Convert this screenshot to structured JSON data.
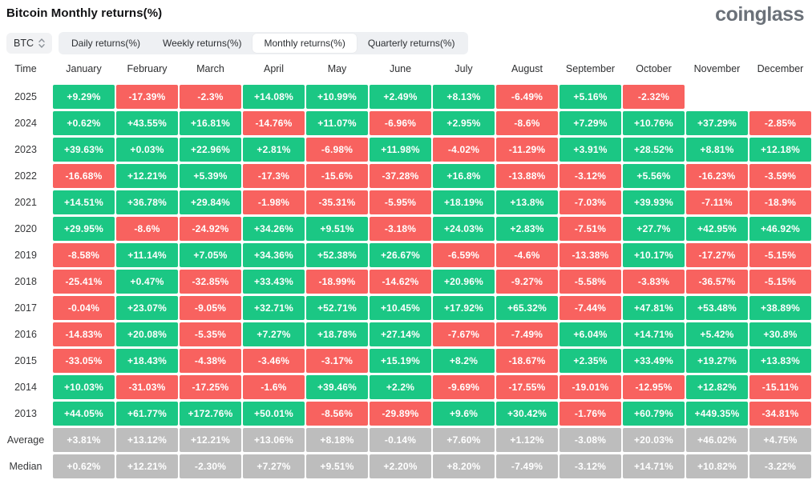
{
  "header": {
    "title": "Bitcoin Monthly returns(%)",
    "logo": "coinglass"
  },
  "controls": {
    "symbol": "BTC",
    "symbol_selector_icon": "sort-arrows-icon",
    "tabs": [
      "Daily returns(%)",
      "Weekly returns(%)",
      "Monthly returns(%)",
      "Quarterly returns(%)"
    ],
    "active_index": 2
  },
  "colors": {
    "positive": "#1BC784",
    "negative": "#F8625F",
    "summary": "#BDBDBD",
    "cell_text": "#FFFFFF"
  },
  "chart_data": {
    "type": "heatmap",
    "title": "Bitcoin Monthly returns(%)",
    "categories": [
      "January",
      "February",
      "March",
      "April",
      "May",
      "June",
      "July",
      "August",
      "September",
      "October",
      "November",
      "December"
    ],
    "series": [
      {
        "name": "2025",
        "values": [
          "+9.29%",
          "-17.39%",
          "-2.3%",
          "+14.08%",
          "+10.99%",
          "+2.49%",
          "+8.13%",
          "-6.49%",
          "+5.16%",
          "-2.32%",
          "",
          ""
        ]
      },
      {
        "name": "2024",
        "values": [
          "+0.62%",
          "+43.55%",
          "+16.81%",
          "-14.76%",
          "+11.07%",
          "-6.96%",
          "+2.95%",
          "-8.6%",
          "+7.29%",
          "+10.76%",
          "+37.29%",
          "-2.85%"
        ]
      },
      {
        "name": "2023",
        "values": [
          "+39.63%",
          "+0.03%",
          "+22.96%",
          "+2.81%",
          "-6.98%",
          "+11.98%",
          "-4.02%",
          "-11.29%",
          "+3.91%",
          "+28.52%",
          "+8.81%",
          "+12.18%"
        ]
      },
      {
        "name": "2022",
        "values": [
          "-16.68%",
          "+12.21%",
          "+5.39%",
          "-17.3%",
          "-15.6%",
          "-37.28%",
          "+16.8%",
          "-13.88%",
          "-3.12%",
          "+5.56%",
          "-16.23%",
          "-3.59%"
        ]
      },
      {
        "name": "2021",
        "values": [
          "+14.51%",
          "+36.78%",
          "+29.84%",
          "-1.98%",
          "-35.31%",
          "-5.95%",
          "+18.19%",
          "+13.8%",
          "-7.03%",
          "+39.93%",
          "-7.11%",
          "-18.9%"
        ]
      },
      {
        "name": "2020",
        "values": [
          "+29.95%",
          "-8.6%",
          "-24.92%",
          "+34.26%",
          "+9.51%",
          "-3.18%",
          "+24.03%",
          "+2.83%",
          "-7.51%",
          "+27.7%",
          "+42.95%",
          "+46.92%"
        ]
      },
      {
        "name": "2019",
        "values": [
          "-8.58%",
          "+11.14%",
          "+7.05%",
          "+34.36%",
          "+52.38%",
          "+26.67%",
          "-6.59%",
          "-4.6%",
          "-13.38%",
          "+10.17%",
          "-17.27%",
          "-5.15%"
        ]
      },
      {
        "name": "2018",
        "values": [
          "-25.41%",
          "+0.47%",
          "-32.85%",
          "+33.43%",
          "-18.99%",
          "-14.62%",
          "+20.96%",
          "-9.27%",
          "-5.58%",
          "-3.83%",
          "-36.57%",
          "-5.15%"
        ]
      },
      {
        "name": "2017",
        "values": [
          "-0.04%",
          "+23.07%",
          "-9.05%",
          "+32.71%",
          "+52.71%",
          "+10.45%",
          "+17.92%",
          "+65.32%",
          "-7.44%",
          "+47.81%",
          "+53.48%",
          "+38.89%"
        ]
      },
      {
        "name": "2016",
        "values": [
          "-14.83%",
          "+20.08%",
          "-5.35%",
          "+7.27%",
          "+18.78%",
          "+27.14%",
          "-7.67%",
          "-7.49%",
          "+6.04%",
          "+14.71%",
          "+5.42%",
          "+30.8%"
        ]
      },
      {
        "name": "2015",
        "values": [
          "-33.05%",
          "+18.43%",
          "-4.38%",
          "-3.46%",
          "-3.17%",
          "+15.19%",
          "+8.2%",
          "-18.67%",
          "+2.35%",
          "+33.49%",
          "+19.27%",
          "+13.83%"
        ]
      },
      {
        "name": "2014",
        "values": [
          "+10.03%",
          "-31.03%",
          "-17.25%",
          "-1.6%",
          "+39.46%",
          "+2.2%",
          "-9.69%",
          "-17.55%",
          "-19.01%",
          "-12.95%",
          "+12.82%",
          "-15.11%"
        ]
      },
      {
        "name": "2013",
        "values": [
          "+44.05%",
          "+61.77%",
          "+172.76%",
          "+50.01%",
          "-8.56%",
          "-29.89%",
          "+9.6%",
          "+30.42%",
          "-1.76%",
          "+60.79%",
          "+449.35%",
          "-34.81%"
        ]
      },
      {
        "name": "Average",
        "values": [
          "+3.81%",
          "+13.12%",
          "+12.21%",
          "+13.06%",
          "+8.18%",
          "-0.14%",
          "+7.60%",
          "+1.12%",
          "-3.08%",
          "+20.03%",
          "+46.02%",
          "+4.75%"
        ]
      },
      {
        "name": "Median",
        "values": [
          "+0.62%",
          "+12.21%",
          "-2.30%",
          "+7.27%",
          "+9.51%",
          "+2.20%",
          "+8.20%",
          "-7.49%",
          "-3.12%",
          "+14.71%",
          "+10.82%",
          "-3.22%"
        ]
      }
    ]
  },
  "table": {
    "columns": [
      "Time",
      "January",
      "February",
      "March",
      "April",
      "May",
      "June",
      "July",
      "August",
      "September",
      "October",
      "November",
      "December"
    ],
    "rows": [
      {
        "label": "2025",
        "type": "year",
        "values": [
          "+9.29%",
          "-17.39%",
          "-2.3%",
          "+14.08%",
          "+10.99%",
          "+2.49%",
          "+8.13%",
          "-6.49%",
          "+5.16%",
          "-2.32%",
          "",
          ""
        ]
      },
      {
        "label": "2024",
        "type": "year",
        "values": [
          "+0.62%",
          "+43.55%",
          "+16.81%",
          "-14.76%",
          "+11.07%",
          "-6.96%",
          "+2.95%",
          "-8.6%",
          "+7.29%",
          "+10.76%",
          "+37.29%",
          "-2.85%"
        ]
      },
      {
        "label": "2023",
        "type": "year",
        "values": [
          "+39.63%",
          "+0.03%",
          "+22.96%",
          "+2.81%",
          "-6.98%",
          "+11.98%",
          "-4.02%",
          "-11.29%",
          "+3.91%",
          "+28.52%",
          "+8.81%",
          "+12.18%"
        ]
      },
      {
        "label": "2022",
        "type": "year",
        "values": [
          "-16.68%",
          "+12.21%",
          "+5.39%",
          "-17.3%",
          "-15.6%",
          "-37.28%",
          "+16.8%",
          "-13.88%",
          "-3.12%",
          "+5.56%",
          "-16.23%",
          "-3.59%"
        ]
      },
      {
        "label": "2021",
        "type": "year",
        "values": [
          "+14.51%",
          "+36.78%",
          "+29.84%",
          "-1.98%",
          "-35.31%",
          "-5.95%",
          "+18.19%",
          "+13.8%",
          "-7.03%",
          "+39.93%",
          "-7.11%",
          "-18.9%"
        ]
      },
      {
        "label": "2020",
        "type": "year",
        "values": [
          "+29.95%",
          "-8.6%",
          "-24.92%",
          "+34.26%",
          "+9.51%",
          "-3.18%",
          "+24.03%",
          "+2.83%",
          "-7.51%",
          "+27.7%",
          "+42.95%",
          "+46.92%"
        ]
      },
      {
        "label": "2019",
        "type": "year",
        "values": [
          "-8.58%",
          "+11.14%",
          "+7.05%",
          "+34.36%",
          "+52.38%",
          "+26.67%",
          "-6.59%",
          "-4.6%",
          "-13.38%",
          "+10.17%",
          "-17.27%",
          "-5.15%"
        ]
      },
      {
        "label": "2018",
        "type": "year",
        "values": [
          "-25.41%",
          "+0.47%",
          "-32.85%",
          "+33.43%",
          "-18.99%",
          "-14.62%",
          "+20.96%",
          "-9.27%",
          "-5.58%",
          "-3.83%",
          "-36.57%",
          "-5.15%"
        ]
      },
      {
        "label": "2017",
        "type": "year",
        "values": [
          "-0.04%",
          "+23.07%",
          "-9.05%",
          "+32.71%",
          "+52.71%",
          "+10.45%",
          "+17.92%",
          "+65.32%",
          "-7.44%",
          "+47.81%",
          "+53.48%",
          "+38.89%"
        ]
      },
      {
        "label": "2016",
        "type": "year",
        "values": [
          "-14.83%",
          "+20.08%",
          "-5.35%",
          "+7.27%",
          "+18.78%",
          "+27.14%",
          "-7.67%",
          "-7.49%",
          "+6.04%",
          "+14.71%",
          "+5.42%",
          "+30.8%"
        ]
      },
      {
        "label": "2015",
        "type": "year",
        "values": [
          "-33.05%",
          "+18.43%",
          "-4.38%",
          "-3.46%",
          "-3.17%",
          "+15.19%",
          "+8.2%",
          "-18.67%",
          "+2.35%",
          "+33.49%",
          "+19.27%",
          "+13.83%"
        ]
      },
      {
        "label": "2014",
        "type": "year",
        "values": [
          "+10.03%",
          "-31.03%",
          "-17.25%",
          "-1.6%",
          "+39.46%",
          "+2.2%",
          "-9.69%",
          "-17.55%",
          "-19.01%",
          "-12.95%",
          "+12.82%",
          "-15.11%"
        ]
      },
      {
        "label": "2013",
        "type": "year",
        "values": [
          "+44.05%",
          "+61.77%",
          "+172.76%",
          "+50.01%",
          "-8.56%",
          "-29.89%",
          "+9.6%",
          "+30.42%",
          "-1.76%",
          "+60.79%",
          "+449.35%",
          "-34.81%"
        ]
      },
      {
        "label": "Average",
        "type": "summary",
        "values": [
          "+3.81%",
          "+13.12%",
          "+12.21%",
          "+13.06%",
          "+8.18%",
          "-0.14%",
          "+7.60%",
          "+1.12%",
          "-3.08%",
          "+20.03%",
          "+46.02%",
          "+4.75%"
        ]
      },
      {
        "label": "Median",
        "type": "summary",
        "values": [
          "+0.62%",
          "+12.21%",
          "-2.30%",
          "+7.27%",
          "+9.51%",
          "+2.20%",
          "+8.20%",
          "-7.49%",
          "-3.12%",
          "+14.71%",
          "+10.82%",
          "-3.22%"
        ]
      }
    ]
  }
}
